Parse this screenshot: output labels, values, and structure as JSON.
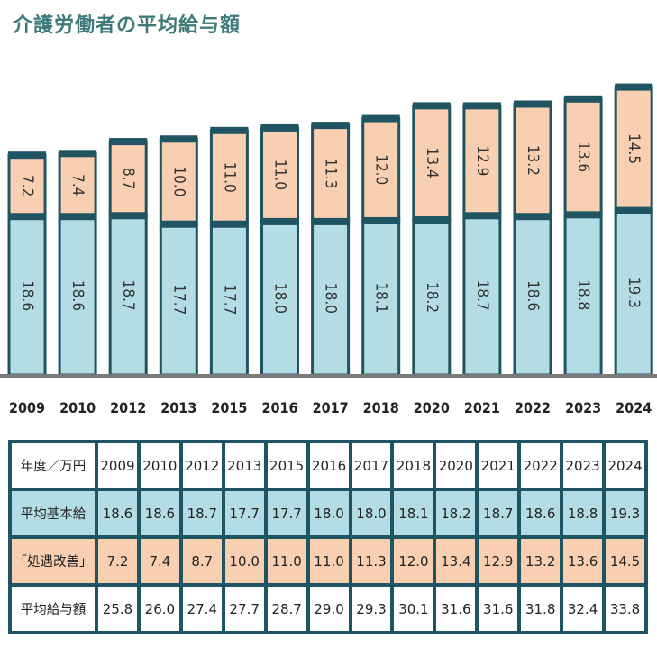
{
  "title": "介護労働者の平均給与額",
  "colors": {
    "base": "#b4dce5",
    "bonus": "#f8cfb0",
    "cap": "#1f5563",
    "title": "#3d7a79",
    "baseline": "#7a7a7a"
  },
  "chart_data": {
    "type": "bar",
    "stacked": true,
    "title": "介護労働者の平均給与額",
    "categories": [
      "2009",
      "2010",
      "2012",
      "2013",
      "2015",
      "2016",
      "2017",
      "2018",
      "2020",
      "2021",
      "2022",
      "2023",
      "2024"
    ],
    "series": [
      {
        "name": "平均基本給",
        "values": [
          18.6,
          18.6,
          18.7,
          17.7,
          17.7,
          18.0,
          18.0,
          18.1,
          18.2,
          18.7,
          18.6,
          18.8,
          19.3
        ]
      },
      {
        "name": "「処遇改善」",
        "values": [
          7.2,
          7.4,
          8.7,
          10.0,
          11.0,
          11.0,
          11.3,
          12.0,
          13.4,
          12.9,
          13.2,
          13.6,
          14.5
        ]
      }
    ],
    "labels_base": [
      "18.6",
      "18.6",
      "18.7",
      "17.7",
      "17.7",
      "18.0",
      "18.0",
      "18.1",
      "18.2",
      "18.7",
      "18.6",
      "18.8",
      "19.3"
    ],
    "labels_bonus": [
      "7.2",
      "7.4",
      "8.7",
      "10.0",
      "11.0",
      "11.0",
      "11.3",
      "12.0",
      "13.4",
      "12.9",
      "13.2",
      "13.6",
      "14.5"
    ],
    "ylim": [
      0,
      34
    ]
  },
  "table": {
    "header": [
      "年度／万円",
      "2009",
      "2010",
      "2012",
      "2013",
      "2015",
      "2016",
      "2017",
      "2018",
      "2020",
      "2021",
      "2022",
      "2023",
      "2024"
    ],
    "rows": [
      {
        "label": "平均基本給",
        "values": [
          "18.6",
          "18.6",
          "18.7",
          "17.7",
          "17.7",
          "18.0",
          "18.0",
          "18.1",
          "18.2",
          "18.7",
          "18.6",
          "18.8",
          "19.3"
        ]
      },
      {
        "label": "「処遇改善」",
        "values": [
          "7.2",
          "7.4",
          "8.7",
          "10.0",
          "11.0",
          "11.0",
          "11.3",
          "12.0",
          "13.4",
          "12.9",
          "13.2",
          "13.6",
          "14.5"
        ]
      },
      {
        "label": "平均給与額",
        "values": [
          "25.8",
          "26.0",
          "27.4",
          "27.7",
          "28.7",
          "29.0",
          "29.3",
          "30.1",
          "31.6",
          "31.6",
          "31.8",
          "32.4",
          "33.8"
        ]
      }
    ]
  }
}
